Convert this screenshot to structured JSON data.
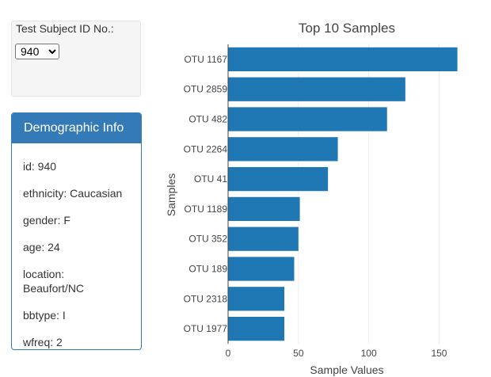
{
  "selector": {
    "label": "Test Subject ID No.:",
    "selected": "940"
  },
  "demographics": {
    "heading": "Demographic Info",
    "lines": [
      "id: 940",
      "ethnicity: Caucasian",
      "gender: F",
      "age: 24",
      "location: Beaufort/NC",
      "bbtype: I",
      "wfreq: 2"
    ]
  },
  "colors": {
    "accent": "#337ab7",
    "bar": "#1f77b4"
  },
  "chart_data": {
    "type": "bar",
    "orientation": "horizontal",
    "title": "Top 10 Samples",
    "xlabel": "Sample Values",
    "ylabel": "Samples",
    "categories": [
      "OTU 1167",
      "OTU 2859",
      "OTU 482",
      "OTU 2264",
      "OTU 41",
      "OTU 1189",
      "OTU 352",
      "OTU 189",
      "OTU 2318",
      "OTU 1977"
    ],
    "values": [
      163,
      126,
      113,
      78,
      71,
      51,
      50,
      47,
      40,
      40
    ],
    "xlim": [
      0,
      170
    ],
    "xticks": [
      0,
      50,
      100,
      150
    ],
    "grid": true
  }
}
